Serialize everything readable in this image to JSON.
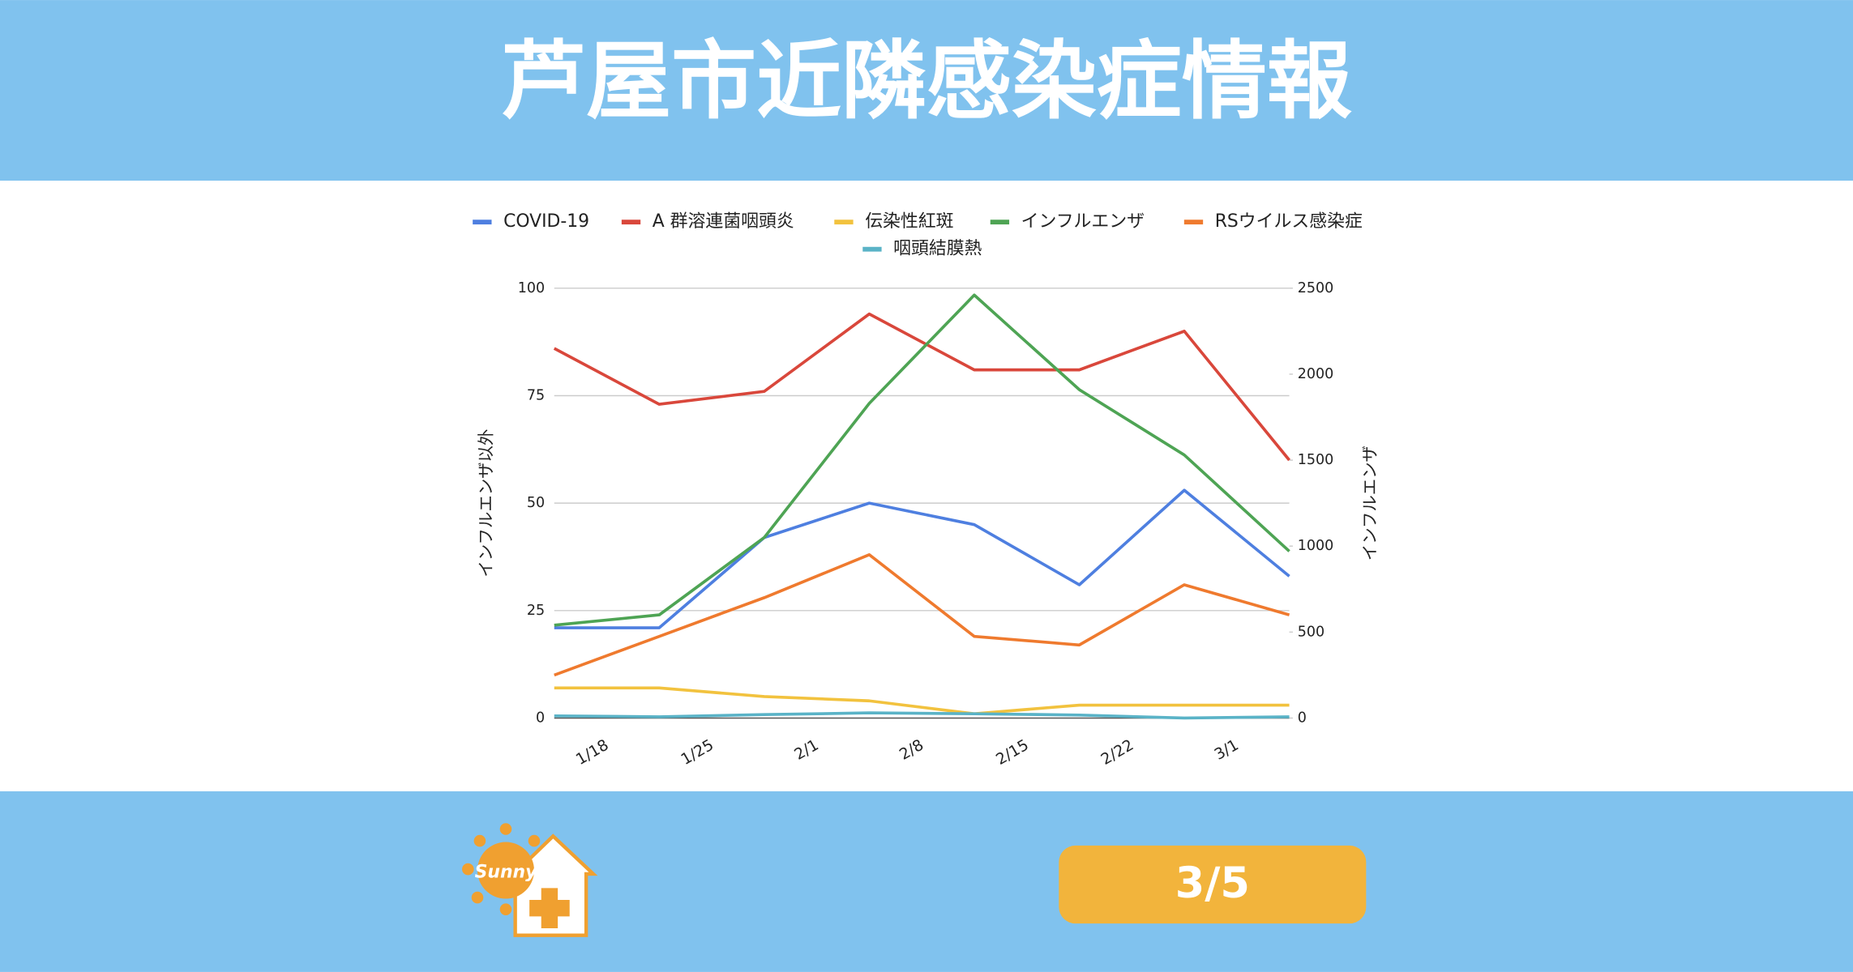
{
  "header": {
    "title": "芦屋市近隣感染症情報"
  },
  "chart_data": {
    "type": "line",
    "categories": [
      "1/18",
      "1/25",
      "2/1",
      "2/8",
      "2/15",
      "2/22",
      "3/1",
      null
    ],
    "series": [
      {
        "name": "COVID-19",
        "color": "#4e7fe0",
        "values": [
          21,
          21,
          42,
          50,
          45,
          31,
          53,
          33
        ]
      },
      {
        "name": "A 群溶連菌咽頭炎",
        "color": "#d9473b",
        "values": [
          86,
          73,
          76,
          94,
          81,
          81,
          90,
          60
        ]
      },
      {
        "name": "伝染性紅斑",
        "color": "#f2c23e",
        "values": [
          7,
          7,
          5,
          4,
          1,
          3,
          3,
          3
        ]
      },
      {
        "name": "インフルエンザ",
        "color": "#4ea454",
        "axis": "y2",
        "values": [
          540,
          600,
          1050,
          1830,
          2460,
          1910,
          1530,
          970
        ]
      },
      {
        "name": "RSウイルス感染症",
        "color": "#ef7a2e",
        "values": [
          10,
          19,
          28,
          38,
          19,
          17,
          31,
          24
        ]
      },
      {
        "name": "咽頭結膜熱",
        "color": "#5ab3c7",
        "values": [
          0.5,
          0.3,
          0.8,
          1.2,
          1,
          0.7,
          0,
          0.3
        ]
      }
    ],
    "ylim": [
      0,
      100
    ],
    "yticks": [
      0,
      25,
      50,
      75,
      100
    ],
    "y2lim": [
      0,
      2500
    ],
    "y2ticks": [
      0,
      500,
      1000,
      1500,
      2000,
      2500
    ],
    "ylabel": "インフルエンザ以外",
    "y2label": "インフルエンザ",
    "grid": true,
    "legend": "top"
  },
  "footer": {
    "logo": "Sunny",
    "date": "3/5"
  }
}
